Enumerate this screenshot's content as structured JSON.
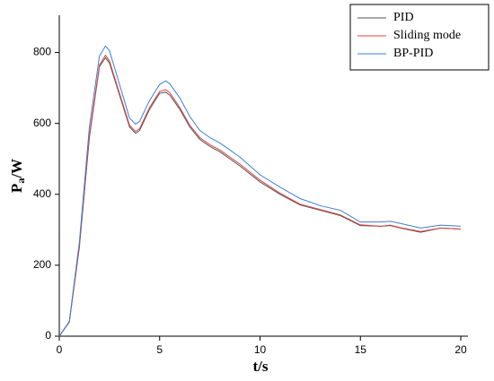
{
  "chart_data": {
    "type": "line",
    "x_label": "t/s",
    "y_label": [
      "P",
      "a",
      "/W"
    ],
    "x": [
      0,
      0.5,
      1,
      1.5,
      2,
      2.3,
      2.5,
      3,
      3.5,
      3.8,
      4,
      4.5,
      5,
      5.3,
      5.5,
      6,
      6.5,
      7,
      7.5,
      8,
      9,
      10,
      11,
      12,
      13,
      14,
      15,
      16,
      16.5,
      17,
      18,
      19,
      20
    ],
    "series": [
      {
        "name": "PID",
        "color": "#555555",
        "values": [
          0,
          40,
          250,
          560,
          760,
          785,
          770,
          680,
          590,
          572,
          580,
          640,
          685,
          688,
          680,
          640,
          590,
          555,
          535,
          520,
          480,
          435,
          400,
          370,
          355,
          340,
          312,
          310,
          312,
          305,
          293,
          305,
          302
        ]
      },
      {
        "name": "Sliding mode",
        "color": "#e04040",
        "values": [
          0,
          40,
          255,
          565,
          765,
          792,
          776,
          685,
          595,
          577,
          585,
          645,
          690,
          695,
          687,
          645,
          595,
          560,
          540,
          525,
          485,
          440,
          403,
          372,
          357,
          342,
          314,
          310,
          313,
          306,
          295,
          305,
          302
        ]
      },
      {
        "name": "BP-PID",
        "color": "#3a7fd5",
        "values": [
          0,
          42,
          265,
          590,
          790,
          818,
          805,
          710,
          615,
          598,
          606,
          665,
          710,
          720,
          712,
          672,
          620,
          580,
          560,
          545,
          505,
          455,
          420,
          388,
          368,
          355,
          322,
          322,
          324,
          318,
          305,
          313,
          310
        ]
      }
    ],
    "xlim": [
      0,
      20
    ],
    "xticks": [
      0,
      5,
      10,
      15,
      20
    ],
    "ylim": [
      0,
      905
    ],
    "yticks": [
      0,
      200,
      400,
      600,
      800
    ],
    "legend": "top-right"
  }
}
